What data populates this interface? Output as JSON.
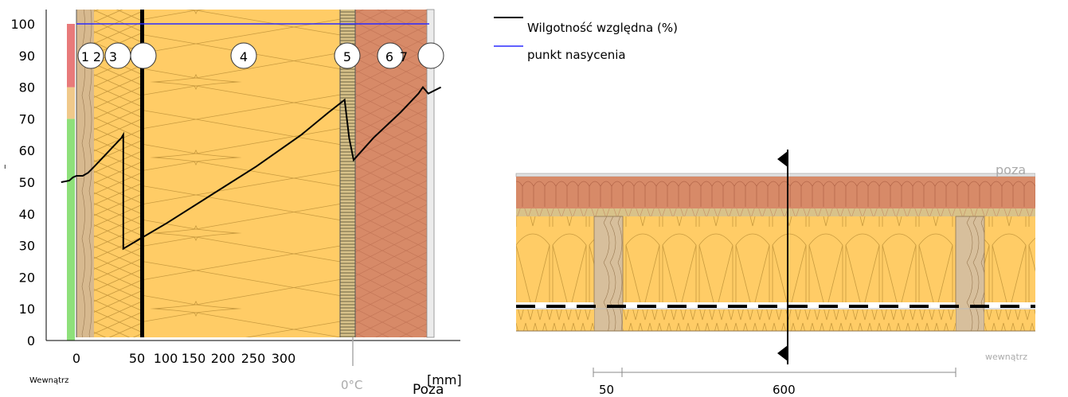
{
  "chart_data": {
    "type": "line",
    "ylim": [
      0,
      100
    ],
    "y_ticks": [
      "0",
      "10",
      "20",
      "30",
      "40",
      "50",
      "60",
      "70",
      "80",
      "90",
      "100"
    ],
    "x_ticks": [
      "0",
      "50",
      "100",
      "150",
      "200",
      "250",
      "300"
    ],
    "x_unit": "[mm]",
    "inside_label": "Wewnątrz",
    "outside_label": "Poza",
    "zero_celsius_label": "0°C",
    "layer_labels": [
      "1",
      "2",
      "3",
      "",
      "4",
      "5",
      "6",
      "7",
      ""
    ],
    "series": [
      {
        "name": "Wilgotność względna (%)",
        "color": "#000000",
        "points": [
          [
            -17,
            50
          ],
          [
            -8,
            50.5
          ],
          [
            -4,
            51.5
          ],
          [
            0,
            52
          ],
          [
            7,
            52
          ],
          [
            13,
            53
          ],
          [
            20,
            55
          ],
          [
            30,
            58
          ],
          [
            40,
            61
          ],
          [
            50,
            64
          ],
          [
            52,
            65
          ],
          [
            52,
            29
          ],
          [
            70,
            32
          ],
          [
            100,
            37
          ],
          [
            150,
            46
          ],
          [
            200,
            55
          ],
          [
            250,
            65
          ],
          [
            280,
            72
          ],
          [
            298,
            76
          ],
          [
            303,
            64
          ],
          [
            308,
            57
          ],
          [
            330,
            64
          ],
          [
            360,
            72
          ],
          [
            380,
            78
          ],
          [
            385,
            80
          ],
          [
            388,
            79
          ],
          [
            391,
            78
          ],
          [
            398,
            79
          ],
          [
            405,
            80
          ]
        ]
      },
      {
        "name": "punkt nasycenia",
        "color": "#2b2bff",
        "points": [
          [
            0,
            100
          ],
          [
            392,
            100
          ]
        ]
      }
    ]
  },
  "legend": {
    "rh_label": "Wilgotność względna (%)",
    "sat_label": "punkt nasycenia",
    "rh_color": "#000000",
    "sat_color": "#2b2bff"
  },
  "comfort_bar": {
    "red_from": 80,
    "orange_from": 70,
    "colors": [
      "#e87a7a",
      "#f0c98a",
      "#8ee07a"
    ]
  },
  "section": {
    "outside_label": "poza",
    "inside_label": "wewnątrz",
    "dim_left": "50",
    "dim_main": "600"
  }
}
